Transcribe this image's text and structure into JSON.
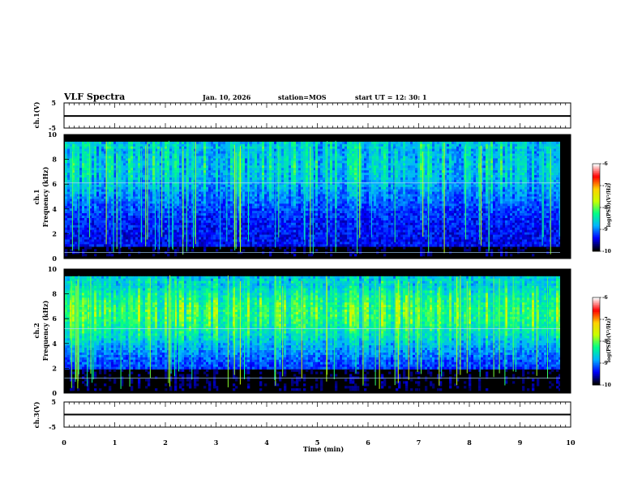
{
  "header": {
    "title": "VLF Spectra",
    "date": "Jan. 10, 2026",
    "station": "station=MOS",
    "start_ut": "start  UT =   12: 30: 1"
  },
  "chart_data": {
    "type": "heatmap",
    "xlabel": "Time  (min)",
    "xlim": [
      0,
      10
    ],
    "x_ticks": [
      0,
      1,
      2,
      3,
      4,
      5,
      6,
      7,
      8,
      9,
      10
    ],
    "panels": [
      {
        "id": "ch1-voltage",
        "type": "line",
        "ylabel": "ch.1(V)",
        "ylim": [
          -5,
          5
        ],
        "y_ticks": [
          5,
          -5
        ],
        "level": 0
      },
      {
        "id": "ch1-spectrogram",
        "type": "heatmap",
        "ylabel_top": "ch.1",
        "ylabel": "Frequency  (kHz)",
        "ylim": [
          0,
          10
        ],
        "y_ticks": [
          0,
          2,
          4,
          6,
          8,
          10
        ],
        "colorbar": {
          "label": "log(PSD)(V²/Hz)",
          "range": [
            -10,
            -6
          ],
          "ticks": [
            -6,
            -7,
            -8,
            -9,
            -10
          ]
        },
        "description": "broadband VLF emission band roughly 1-9.5 kHz, intensity about -9.5 to -8.5, vertical impulsive streaks, horizontal tones near 0.5 kHz and 6 kHz",
        "band_kHz": [
          1,
          9.5
        ],
        "tones_kHz": [
          0.5,
          6.1
        ]
      },
      {
        "id": "ch2-spectrogram",
        "type": "heatmap",
        "ylabel_top": "ch.2",
        "ylabel": "Frequency  (kHz)",
        "ylim": [
          0,
          10
        ],
        "y_ticks": [
          0,
          2,
          4,
          6,
          8,
          10
        ],
        "colorbar": {
          "label": "log(PSD)(V²/Hz)",
          "range": [
            -10,
            -6
          ],
          "ticks": [
            -6,
            -7,
            -8,
            -9,
            -10
          ]
        },
        "description": "stronger broadband VLF emission 2-9.5 kHz, intensity about -9 to -8, peak band 5-8 kHz, horizontal tones near 1.2 kHz and 5.2 kHz",
        "band_kHz": [
          2,
          9.5
        ],
        "tones_kHz": [
          1.2,
          5.2
        ]
      },
      {
        "id": "ch3-voltage",
        "type": "line",
        "ylabel": "ch.3(V)",
        "ylim": [
          -5,
          5
        ],
        "y_ticks": [
          5,
          -5
        ],
        "level": 0
      }
    ]
  },
  "colors": {
    "colormap": [
      "#000000",
      "#0000ff",
      "#00b4ff",
      "#00ff88",
      "#c8ff00",
      "#ffd000",
      "#ff0000",
      "#ffffff"
    ],
    "tone": "#a8d8ff"
  }
}
